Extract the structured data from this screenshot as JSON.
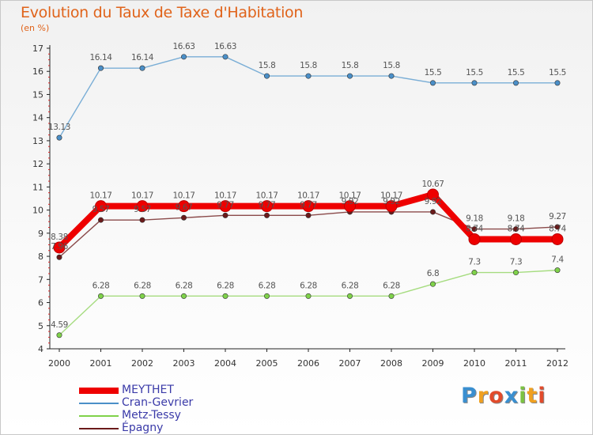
{
  "title": "Evolution du Taux de Taxe d'Habitation",
  "subtitle": "(en %)",
  "logo": {
    "text": "Proxiti",
    "letters": [
      {
        "ch": "P",
        "color": "#3a8fd0"
      },
      {
        "ch": "r",
        "color": "#f0a020"
      },
      {
        "ch": "o",
        "color": "#e24b2b"
      },
      {
        "ch": "x",
        "color": "#3a8fd0"
      },
      {
        "ch": "i",
        "color": "#7cc242"
      },
      {
        "ch": "t",
        "color": "#f0a020"
      },
      {
        "ch": "i",
        "color": "#e24b2b"
      }
    ]
  },
  "chart_data": {
    "type": "line",
    "x": [
      "2000",
      "2001",
      "2002",
      "2003",
      "2004",
      "2005",
      "2006",
      "2007",
      "2008",
      "2009",
      "2010",
      "2011",
      "2012"
    ],
    "ylim": [
      4,
      17
    ],
    "yticks": [
      "4",
      "5",
      "6",
      "7",
      "8",
      "9",
      "10",
      "11",
      "12",
      "13",
      "14",
      "15",
      "16",
      "17"
    ],
    "grid": false,
    "legend_position": "bottom-left",
    "series": [
      {
        "name": "MEYTHET",
        "color": "#ee0000",
        "line_color": "#ee0000",
        "thick": true,
        "values": [
          8.38,
          10.17,
          10.17,
          10.17,
          10.17,
          10.17,
          10.17,
          10.17,
          10.17,
          10.67,
          8.74,
          8.74,
          8.74
        ],
        "labels": [
          "8.38",
          "10.17",
          "10.17",
          "10.17",
          "10.17",
          "10.17",
          "10.17",
          "10.17",
          "10.17",
          "10.67",
          "8.74",
          "8.74",
          "8.74"
        ],
        "show_labels": [
          true,
          true,
          true,
          true,
          true,
          true,
          true,
          true,
          true,
          true,
          true,
          true,
          true
        ]
      },
      {
        "name": "Cran-Gevrier",
        "color": "#4a8fc8",
        "line_color": "#7aaed6",
        "thick": false,
        "values": [
          13.13,
          16.14,
          16.14,
          16.63,
          16.63,
          15.8,
          15.8,
          15.8,
          15.8,
          15.5,
          15.5,
          15.5,
          15.5
        ],
        "labels": [
          "13.13",
          "16.14",
          "16.14",
          "16.63",
          "16.63",
          "15.8",
          "15.8",
          "15.8",
          "15.8",
          "15.5",
          "15.5",
          "15.5",
          "15.5"
        ],
        "show_labels": [
          true,
          true,
          true,
          true,
          true,
          true,
          true,
          true,
          true,
          true,
          true,
          true,
          true
        ]
      },
      {
        "name": "Metz-Tessy",
        "color": "#7fd24a",
        "line_color": "#a6dc80",
        "thick": false,
        "values": [
          4.59,
          6.28,
          6.28,
          6.28,
          6.28,
          6.28,
          6.28,
          6.28,
          6.28,
          6.8,
          7.3,
          7.3,
          7.4
        ],
        "labels": [
          "4.59",
          "6.28",
          "6.28",
          "6.28",
          "6.28",
          "6.28",
          "6.28",
          "6.28",
          "6.28",
          "6.8",
          "7.3",
          "7.3",
          "7.4"
        ],
        "show_labels": [
          true,
          true,
          true,
          true,
          true,
          true,
          true,
          true,
          true,
          true,
          true,
          true,
          true
        ]
      },
      {
        "name": "Épagny",
        "color": "#6a1a1a",
        "line_color": "#8a4a4a",
        "thick": false,
        "values": [
          7.96,
          9.57,
          9.57,
          9.67,
          9.77,
          9.77,
          9.77,
          9.92,
          9.92,
          9.92,
          9.18,
          9.18,
          9.27
        ],
        "labels": [
          "7.96",
          "9.57",
          "9.57",
          "9.67",
          "9.77",
          "9.77",
          "9.77",
          "9.92",
          "9.92",
          "9.92",
          "9.18",
          "9.18",
          "9.27"
        ],
        "show_labels": [
          true,
          true,
          true,
          true,
          true,
          true,
          true,
          true,
          true,
          true,
          true,
          true,
          true
        ]
      }
    ]
  }
}
